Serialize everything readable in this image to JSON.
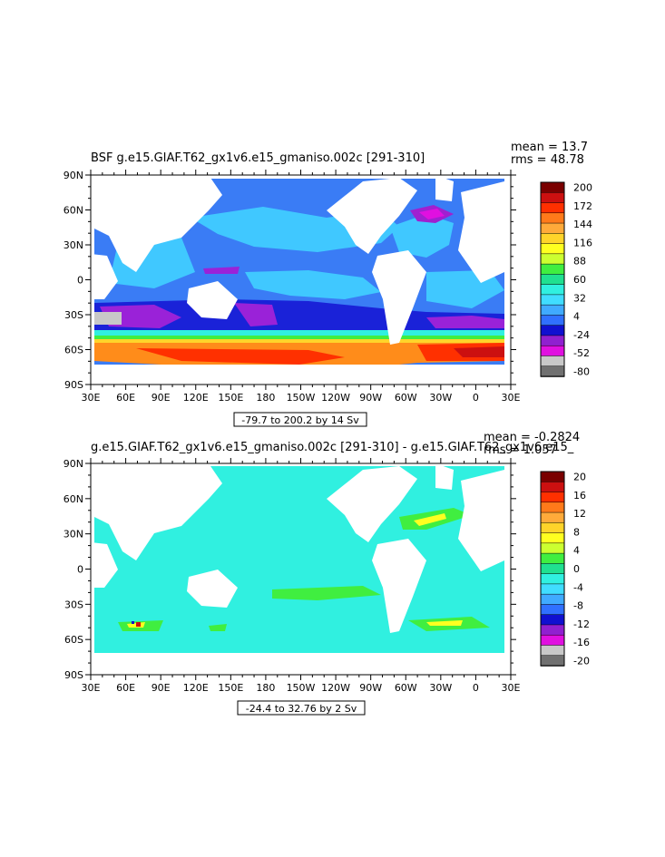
{
  "chart_data": [
    {
      "type": "heatmap",
      "title": "BSF g.e15.GIAF.T62_gx1v6.e15_gmaniso.002c [291-310]",
      "stats": {
        "mean": "mean = 13.7",
        "rms": "rms = 48.78"
      },
      "range_note": "-79.7 to 200.2 by 14 Sv",
      "xlim": [
        30,
        390
      ],
      "ylim": [
        -90,
        90
      ],
      "x_ticks": [
        "30E",
        "60E",
        "90E",
        "120E",
        "150E",
        "180",
        "150W",
        "120W",
        "90W",
        "60W",
        "30W",
        "0",
        "30E"
      ],
      "y_ticks": [
        "90S",
        "60S",
        "30S",
        "0",
        "30N",
        "60N",
        "90N"
      ],
      "colorbar": {
        "labels": [
          "200",
          "172",
          "144",
          "116",
          "88",
          "60",
          "32",
          "4",
          "-24",
          "-52",
          "-80"
        ],
        "colors": [
          "#7a0000",
          "#cc1010",
          "#ff3000",
          "#ff7a1a",
          "#ffaa3a",
          "#ffd42a",
          "#ffff20",
          "#ccff30",
          "#40ee40",
          "#20e090",
          "#30f0e0",
          "#40ddff",
          "#40aaff",
          "#3070ff",
          "#1010d0",
          "#9020d0",
          "#e010e0",
          "#c8c8c8",
          "#707070"
        ]
      }
    },
    {
      "type": "heatmap",
      "title": "g.e15.GIAF.T62_gx1v6.e15_gmaniso.002c [291-310] - g.e15.GIAF.T62_gx1v6.e15_",
      "stats": {
        "mean": "mean = -0.2824",
        "rms": "rms = 1.057"
      },
      "range_note": "-24.4 to 32.76 by 2 Sv",
      "xlim": [
        30,
        390
      ],
      "ylim": [
        -90,
        90
      ],
      "x_ticks": [
        "30E",
        "60E",
        "90E",
        "120E",
        "150E",
        "180",
        "150W",
        "120W",
        "90W",
        "60W",
        "30W",
        "0",
        "30E"
      ],
      "y_ticks": [
        "90S",
        "60S",
        "30S",
        "0",
        "30N",
        "60N",
        "90N"
      ],
      "colorbar": {
        "labels": [
          "20",
          "16",
          "12",
          "8",
          "4",
          "0",
          "-4",
          "-8",
          "-12",
          "-16",
          "-20"
        ],
        "colors": [
          "#7a0000",
          "#cc1010",
          "#ff3000",
          "#ff7a1a",
          "#ffaa3a",
          "#ffd42a",
          "#ffff20",
          "#ccff30",
          "#40ee40",
          "#20e090",
          "#30f0e0",
          "#40ddff",
          "#40aaff",
          "#3070ff",
          "#1010d0",
          "#9020d0",
          "#e010e0",
          "#c8c8c8",
          "#707070"
        ]
      }
    }
  ]
}
